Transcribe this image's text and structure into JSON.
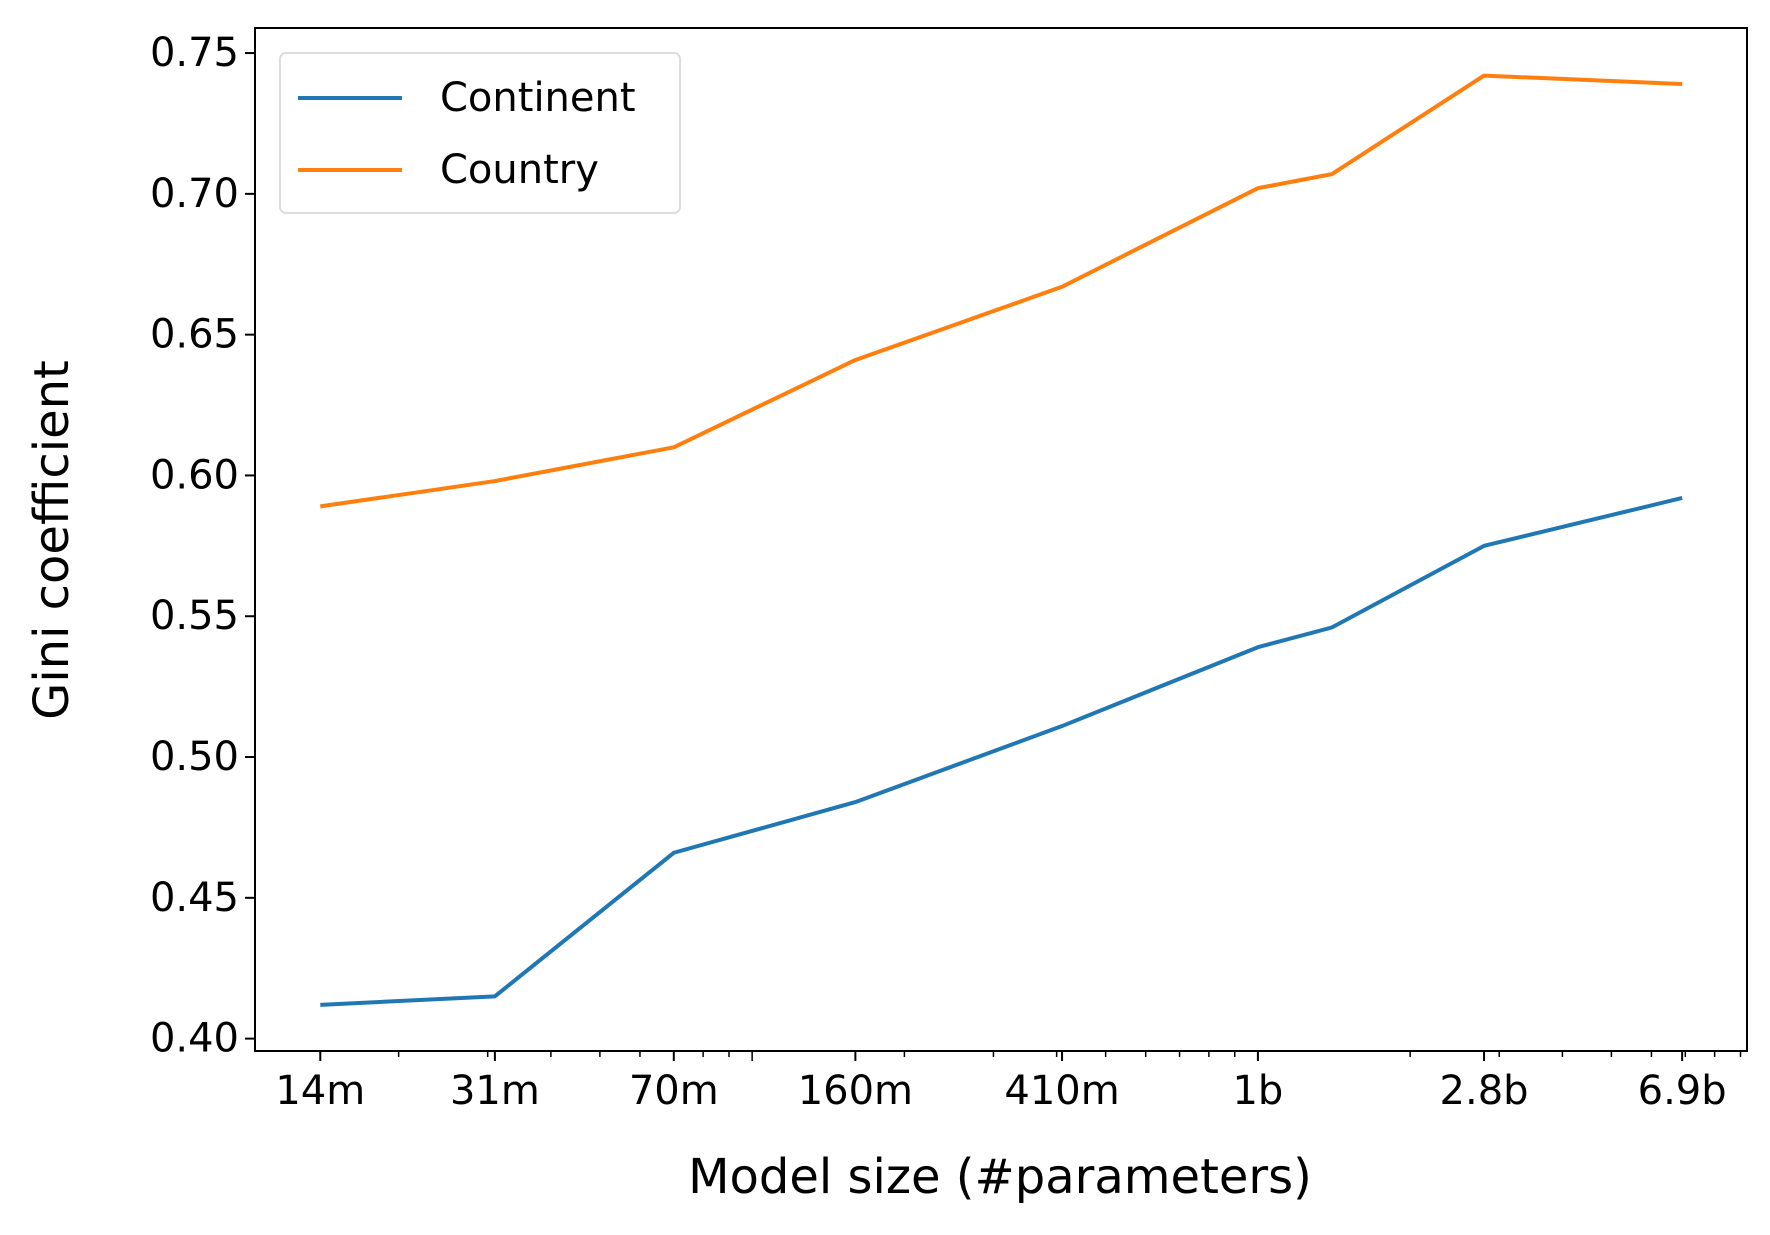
{
  "chart_data": {
    "type": "line",
    "x_label": "Model size (#parameters)",
    "y_label": "Gini coefficient",
    "x": [
      14000000,
      31000000,
      70000000,
      160000000,
      410000000,
      1000000000,
      1400000000,
      2800000000,
      6900000000
    ],
    "series": [
      {
        "name": "Continent",
        "color": "#1f77b4",
        "values": [
          0.412,
          0.415,
          0.466,
          0.484,
          0.511,
          0.539,
          0.546,
          0.575,
          0.592
        ]
      },
      {
        "name": "Country",
        "color": "#ff7f0e",
        "values": [
          0.589,
          0.598,
          0.61,
          0.641,
          0.667,
          0.702,
          0.707,
          0.742,
          0.739
        ]
      }
    ],
    "x_log": true,
    "xlim": [
      10400000,
      9270000000
    ],
    "xticks": [
      {
        "value": 14000000,
        "label": "14m"
      },
      {
        "value": 31000000,
        "label": "31m"
      },
      {
        "value": 70000000,
        "label": "70m"
      },
      {
        "value": 160000000,
        "label": "160m"
      },
      {
        "value": 410000000,
        "label": "410m"
      },
      {
        "value": 1000000000,
        "label": "1b"
      },
      {
        "value": 2800000000,
        "label": "2.8b"
      },
      {
        "value": 6900000000,
        "label": "6.9b"
      }
    ],
    "ylim": [
      0.3956,
      0.7589
    ],
    "yticks": [
      {
        "value": 0.4,
        "label": "0.40"
      },
      {
        "value": 0.45,
        "label": "0.45"
      },
      {
        "value": 0.5,
        "label": "0.50"
      },
      {
        "value": 0.55,
        "label": "0.55"
      },
      {
        "value": 0.6,
        "label": "0.60"
      },
      {
        "value": 0.65,
        "label": "0.65"
      },
      {
        "value": 0.7,
        "label": "0.70"
      },
      {
        "value": 0.75,
        "label": "0.75"
      }
    ],
    "grid": false,
    "legend": "upper left"
  }
}
